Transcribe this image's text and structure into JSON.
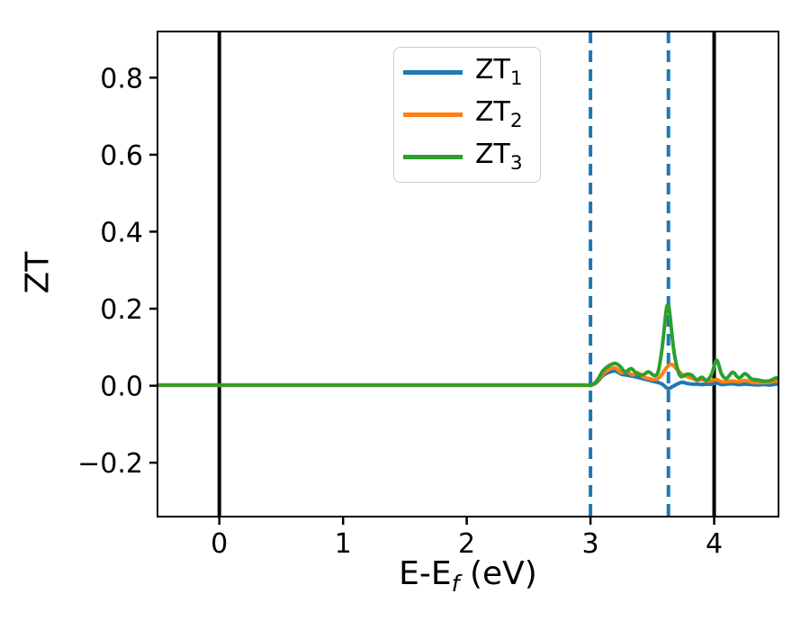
{
  "figure": {
    "xlabel_prefix": "E-E",
    "xlabel_sub": "f",
    "xlabel_suffix": " (eV)"
  },
  "chart_data": {
    "type": "line",
    "title": "",
    "xlabel": "E-E_f (eV)",
    "ylabel": "ZT",
    "xlim": [
      -0.5,
      4.52
    ],
    "ylim": [
      -0.34,
      0.92
    ],
    "xticks": [
      0,
      1,
      2,
      3,
      4
    ],
    "yticks": [
      -0.2,
      0.0,
      0.2,
      0.4,
      0.6,
      0.8
    ],
    "grid": false,
    "axis_color": "#000000",
    "spine_width": 2,
    "vlines_solid": [
      0,
      4
    ],
    "vlines_dashed": [
      3.0,
      3.63
    ],
    "vline_dashed_color": "#1f77b4",
    "legend_position": "upper center",
    "series": [
      {
        "name": "ZT1",
        "label_base": "ZT",
        "label_sub": "1",
        "color": "#1f77b4",
        "points": [
          [
            -0.5,
            0.001
          ],
          [
            1.0,
            0.001
          ],
          [
            2.0,
            0.001
          ],
          [
            2.9,
            0.001
          ],
          [
            3.0,
            0.001
          ],
          [
            3.05,
            0.008
          ],
          [
            3.1,
            0.026
          ],
          [
            3.15,
            0.035
          ],
          [
            3.2,
            0.038
          ],
          [
            3.25,
            0.03
          ],
          [
            3.3,
            0.027
          ],
          [
            3.35,
            0.024
          ],
          [
            3.4,
            0.02
          ],
          [
            3.45,
            0.016
          ],
          [
            3.5,
            0.012
          ],
          [
            3.55,
            0.008
          ],
          [
            3.58,
            0.004
          ],
          [
            3.61,
            -0.004
          ],
          [
            3.63,
            -0.008
          ],
          [
            3.66,
            -0.003
          ],
          [
            3.7,
            0.004
          ],
          [
            3.74,
            0.009
          ],
          [
            3.78,
            0.006
          ],
          [
            3.82,
            0.004
          ],
          [
            3.86,
            0.004
          ],
          [
            3.9,
            0.003
          ],
          [
            3.94,
            0.004
          ],
          [
            3.98,
            0.004
          ],
          [
            4.02,
            0.007
          ],
          [
            4.06,
            0.003
          ],
          [
            4.1,
            0.004
          ],
          [
            4.15,
            0.005
          ],
          [
            4.2,
            0.003
          ],
          [
            4.25,
            0.004
          ],
          [
            4.3,
            0.003
          ],
          [
            4.35,
            0.002
          ],
          [
            4.4,
            0.003
          ],
          [
            4.45,
            0.002
          ],
          [
            4.5,
            0.004
          ],
          [
            4.52,
            0.004
          ]
        ]
      },
      {
        "name": "ZT2",
        "label_base": "ZT",
        "label_sub": "2",
        "color": "#ff7f0e",
        "points": [
          [
            -0.5,
            0.001
          ],
          [
            1.0,
            0.001
          ],
          [
            2.0,
            0.001
          ],
          [
            2.9,
            0.001
          ],
          [
            3.0,
            0.001
          ],
          [
            3.05,
            0.01
          ],
          [
            3.1,
            0.03
          ],
          [
            3.15,
            0.042
          ],
          [
            3.2,
            0.046
          ],
          [
            3.25,
            0.034
          ],
          [
            3.3,
            0.036
          ],
          [
            3.34,
            0.028
          ],
          [
            3.38,
            0.034
          ],
          [
            3.43,
            0.022
          ],
          [
            3.48,
            0.018
          ],
          [
            3.52,
            0.016
          ],
          [
            3.56,
            0.022
          ],
          [
            3.6,
            0.04
          ],
          [
            3.63,
            0.052
          ],
          [
            3.66,
            0.055
          ],
          [
            3.7,
            0.042
          ],
          [
            3.74,
            0.03
          ],
          [
            3.78,
            0.024
          ],
          [
            3.82,
            0.019
          ],
          [
            3.86,
            0.014
          ],
          [
            3.9,
            0.016
          ],
          [
            3.94,
            0.012
          ],
          [
            3.98,
            0.013
          ],
          [
            4.02,
            0.016
          ],
          [
            4.06,
            0.01
          ],
          [
            4.1,
            0.011
          ],
          [
            4.15,
            0.012
          ],
          [
            4.2,
            0.01
          ],
          [
            4.25,
            0.014
          ],
          [
            4.3,
            0.009
          ],
          [
            4.35,
            0.008
          ],
          [
            4.4,
            0.008
          ],
          [
            4.45,
            0.009
          ],
          [
            4.5,
            0.012
          ],
          [
            4.52,
            0.011
          ]
        ]
      },
      {
        "name": "ZT3",
        "label_base": "ZT",
        "label_sub": "3",
        "color": "#2ca02c",
        "points": [
          [
            -0.5,
            0.002
          ],
          [
            1.0,
            0.002
          ],
          [
            2.0,
            0.002
          ],
          [
            2.9,
            0.002
          ],
          [
            3.0,
            0.002
          ],
          [
            3.05,
            0.012
          ],
          [
            3.1,
            0.038
          ],
          [
            3.15,
            0.052
          ],
          [
            3.2,
            0.058
          ],
          [
            3.24,
            0.05
          ],
          [
            3.28,
            0.036
          ],
          [
            3.33,
            0.044
          ],
          [
            3.38,
            0.03
          ],
          [
            3.43,
            0.029
          ],
          [
            3.47,
            0.036
          ],
          [
            3.52,
            0.026
          ],
          [
            3.55,
            0.04
          ],
          [
            3.58,
            0.1
          ],
          [
            3.61,
            0.19
          ],
          [
            3.625,
            0.21
          ],
          [
            3.64,
            0.19
          ],
          [
            3.67,
            0.1
          ],
          [
            3.7,
            0.048
          ],
          [
            3.73,
            0.024
          ],
          [
            3.78,
            0.03
          ],
          [
            3.82,
            0.027
          ],
          [
            3.86,
            0.015
          ],
          [
            3.9,
            0.022
          ],
          [
            3.94,
            0.014
          ],
          [
            3.98,
            0.03
          ],
          [
            4.02,
            0.066
          ],
          [
            4.06,
            0.03
          ],
          [
            4.1,
            0.019
          ],
          [
            4.15,
            0.035
          ],
          [
            4.2,
            0.02
          ],
          [
            4.25,
            0.031
          ],
          [
            4.3,
            0.018
          ],
          [
            4.35,
            0.015
          ],
          [
            4.4,
            0.012
          ],
          [
            4.45,
            0.013
          ],
          [
            4.5,
            0.02
          ],
          [
            4.52,
            0.018
          ]
        ]
      }
    ]
  }
}
